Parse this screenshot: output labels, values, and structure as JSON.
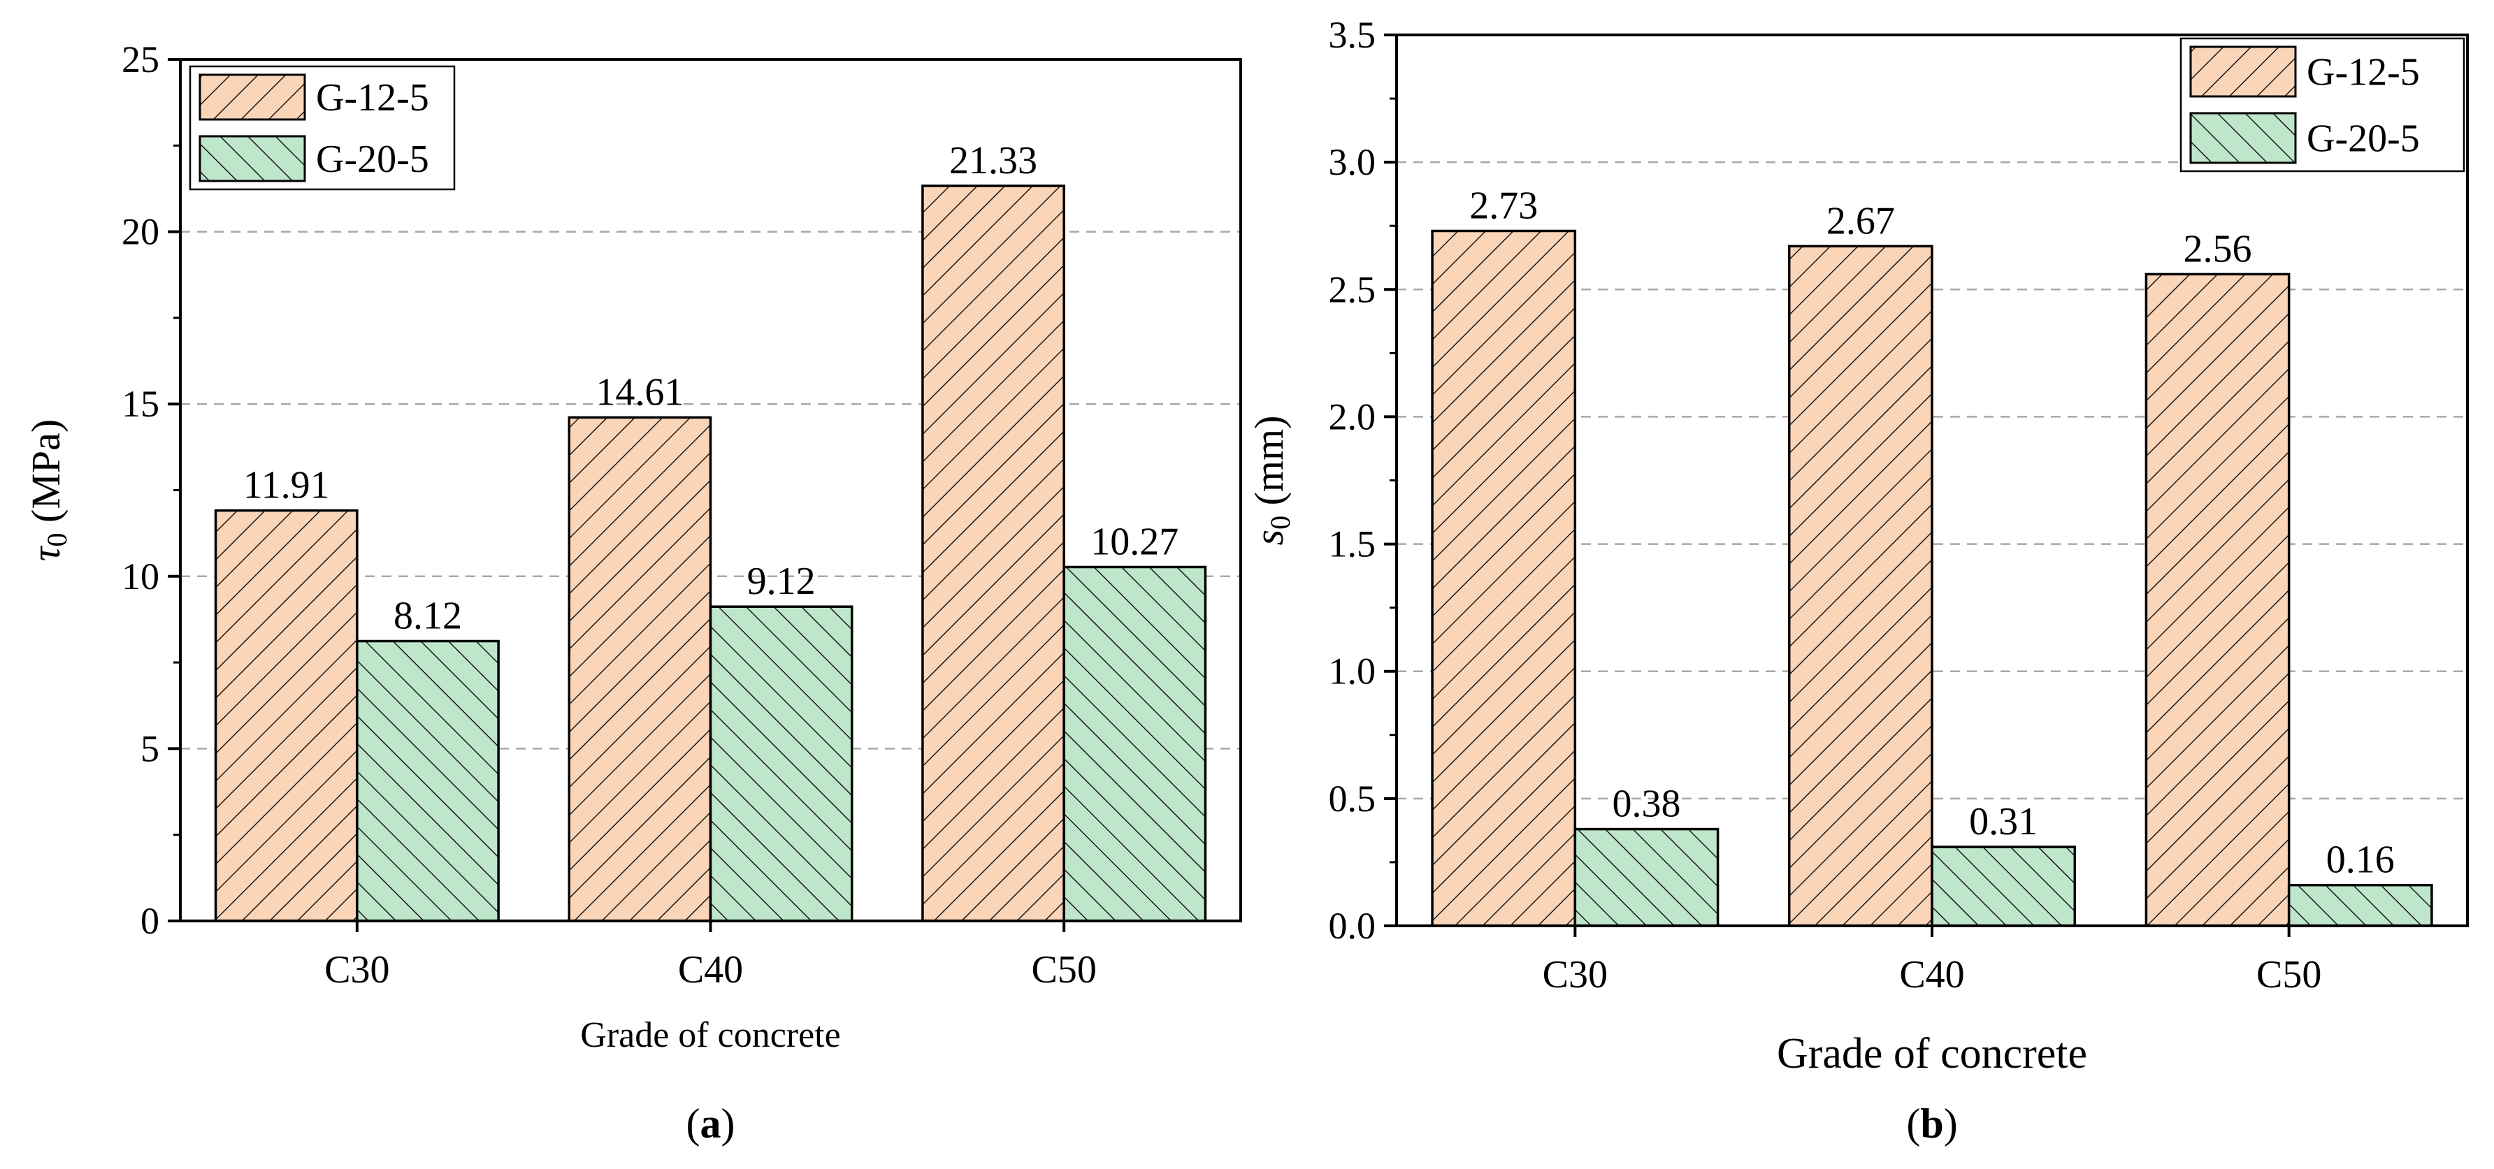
{
  "colors": {
    "series_a_fill": "#FBD5B8",
    "series_b_fill": "#BEE6CB",
    "hatch": "#1a1a1a",
    "grid": "#a8a8a8",
    "axis": "#000000"
  },
  "chart_data": [
    {
      "type": "bar",
      "panel_label": "a",
      "categories": [
        "C30",
        "C40",
        "C50"
      ],
      "series": [
        {
          "name": "G-12-5",
          "values": [
            11.91,
            14.61,
            21.33
          ],
          "value_labels": [
            "11.91",
            "14.61",
            "21.33"
          ],
          "hatch": "forward"
        },
        {
          "name": "G-20-5",
          "values": [
            8.12,
            9.12,
            10.27
          ],
          "value_labels": [
            "8.12",
            "9.12",
            "10.27"
          ],
          "hatch": "back"
        }
      ],
      "xlabel": "Grade of concrete",
      "ylabel_symbol": "τ",
      "ylabel_sub": "0",
      "ylabel_unit": "(MPa)",
      "ylim": [
        0,
        25
      ],
      "yticks": [
        "0",
        "5",
        "10",
        "15",
        "20",
        "25"
      ],
      "tick_step": 5,
      "grid": true,
      "legend_position": "top-left"
    },
    {
      "type": "bar",
      "panel_label": "b",
      "categories": [
        "C30",
        "C40",
        "C50"
      ],
      "series": [
        {
          "name": "G-12-5",
          "values": [
            2.73,
            2.67,
            2.56
          ],
          "value_labels": [
            "2.73",
            "2.67",
            "2.56"
          ],
          "hatch": "forward"
        },
        {
          "name": "G-20-5",
          "values": [
            0.38,
            0.31,
            0.16
          ],
          "value_labels": [
            "0.38",
            "0.31",
            "0.16"
          ],
          "hatch": "back"
        }
      ],
      "xlabel": "Grade of concrete",
      "ylabel_symbol": "s",
      "ylabel_sub": "0",
      "ylabel_unit": "(mm)",
      "ylim": [
        0,
        3.5
      ],
      "yticks": [
        "0.0",
        "0.5",
        "1.0",
        "1.5",
        "2.0",
        "2.5",
        "3.0",
        "3.5"
      ],
      "tick_step": 0.5,
      "grid": true,
      "legend_position": "top-right"
    }
  ]
}
